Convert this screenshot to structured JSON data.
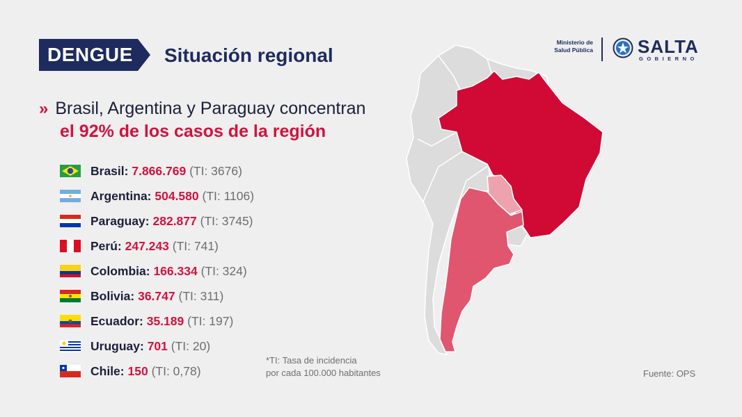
{
  "header": {
    "tag": "DENGUE",
    "title": "Situación regional"
  },
  "headline": {
    "line1": "Brasil, Argentina y Paraguay concentran",
    "line2": "el 92% de los casos de la región"
  },
  "countries": [
    {
      "name": "Brasil:",
      "value": "7.866.769",
      "ti": "(TI: 3676)",
      "flag": "brazil-flag-icon"
    },
    {
      "name": "Argentina:",
      "value": "504.580",
      "ti": "(TI: 1106)",
      "flag": "argentina-flag-icon"
    },
    {
      "name": "Paraguay:",
      "value": "282.877",
      "ti": "(TI: 3745)",
      "flag": "paraguay-flag-icon"
    },
    {
      "name": "Perú:",
      "value": "247.243",
      "ti": "(TI: 741)",
      "flag": "peru-flag-icon"
    },
    {
      "name": "Colombia:",
      "value": "166.334",
      "ti": "(TI: 324)",
      "flag": "colombia-flag-icon"
    },
    {
      "name": "Bolivia:",
      "value": "36.747",
      "ti": "(TI: 311)",
      "flag": "bolivia-flag-icon"
    },
    {
      "name": "Ecuador:",
      "value": "35.189",
      "ti": "(TI: 197)",
      "flag": "ecuador-flag-icon"
    },
    {
      "name": "Uruguay:",
      "value": "701",
      "ti": "(TI: 20)",
      "flag": "uruguay-flag-icon"
    },
    {
      "name": "Chile:",
      "value": "150",
      "ti": "(TI: 0,78)",
      "flag": "chile-flag-icon"
    }
  ],
  "footnote": {
    "line1": "*TI: Tasa de incidencia",
    "line2": "por cada 100.000 habitantes"
  },
  "source": "Fuente: OPS",
  "logo": {
    "ministerio_line1": "Ministerio de",
    "ministerio_line2": "Salud Pública",
    "salta": "SALTA",
    "gobierno": "GOBIERNO"
  },
  "map": {
    "highlight_colors": {
      "brazil": "#d10a35",
      "argentina": "#e0566f",
      "paraguay": "#eea2ad",
      "other": "#dcdcdc",
      "border": "#ffffff"
    }
  },
  "colors": {
    "accent_red": "#d1123f",
    "navy": "#1d2b5e",
    "background": "#efefef"
  }
}
